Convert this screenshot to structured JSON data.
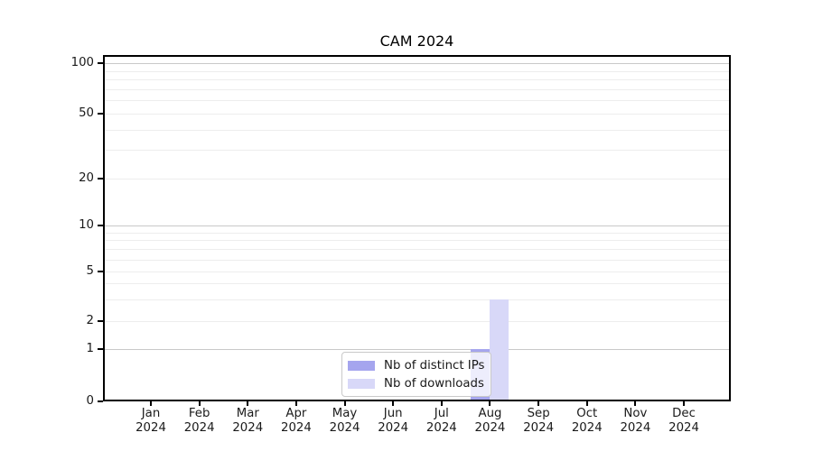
{
  "chart_data": {
    "type": "bar",
    "title": "CAM 2024",
    "xlabel": "",
    "ylabel": "",
    "categories": [
      "Jan 2024",
      "Feb 2024",
      "Mar 2024",
      "Apr 2024",
      "May 2024",
      "Jun 2024",
      "Jul 2024",
      "Aug 2024",
      "Sep 2024",
      "Oct 2024",
      "Nov 2024",
      "Dec 2024"
    ],
    "series": [
      {
        "name": "Nb of distinct IPs",
        "color": "#a5a5ee",
        "values": [
          0,
          0,
          0,
          0,
          0,
          0,
          0,
          1,
          0,
          0,
          0,
          0
        ]
      },
      {
        "name": "Nb of downloads",
        "color": "#d8d8f8",
        "values": [
          0,
          0,
          0,
          0,
          0,
          0,
          0,
          3,
          0,
          0,
          0,
          0
        ]
      }
    ],
    "y_scale": "log-like (symlog: linear 0-1, log above)",
    "y_tick_labels": [
      0,
      1,
      2,
      5,
      10,
      20,
      50,
      100
    ],
    "y_major_gridlines": [
      1,
      10,
      100
    ],
    "y_minor_gridlines": [
      2,
      3,
      4,
      5,
      6,
      7,
      8,
      9,
      20,
      30,
      40,
      50,
      60,
      70,
      80,
      90
    ],
    "ylim": [
      0,
      110
    ],
    "grid": "horizontal only",
    "legend_position": "bottom-center inside plot"
  },
  "colors": {
    "background": "#ffffff",
    "spine": "#000000",
    "grid_major": "#c9c9c9",
    "grid_minor": "#ededed",
    "legend_border": "#c9c9c9",
    "bar_distinct_ips": "#a5a5ee",
    "bar_downloads": "#d8d8f8"
  }
}
